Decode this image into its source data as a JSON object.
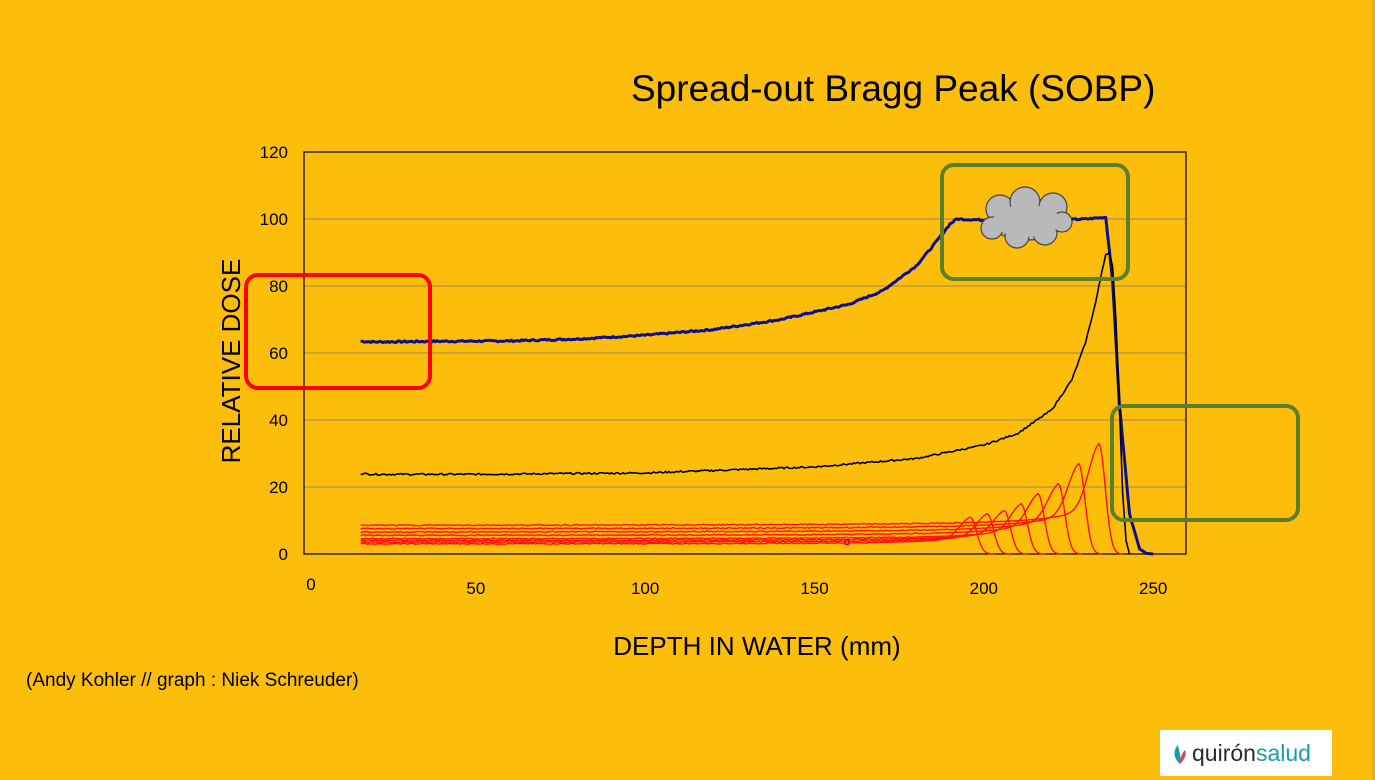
{
  "slide": {
    "title": "Spread-out Bragg Peak (SOBP)",
    "credit": "(Andy Kohler //  graph : Niek Schreuder)",
    "logo": {
      "part_a": "quirón",
      "part_b": "salud"
    },
    "colors": {
      "background": "#FDBD0B",
      "sobp_curve": "#0A0F8C",
      "single_peak_curve": "#000000",
      "weighted_peaks": "#FF1010",
      "annotation_red_box": "#FF0000",
      "annotation_green_box": "#5B7F2A",
      "cloud": "#B9B9B9"
    }
  },
  "chart_data": {
    "type": "line",
    "title": "Spread-out Bragg Peak (SOBP)",
    "xlabel": "DEPTH IN WATER (mm)",
    "ylabel": "RELATIVE DOSE",
    "xlim": [
      0,
      260
    ],
    "ylim": [
      0,
      120
    ],
    "xticks": [
      0,
      50,
      100,
      150,
      200,
      250
    ],
    "yticks": [
      0,
      20,
      40,
      60,
      80,
      100,
      120
    ],
    "grid": "horizontal",
    "series": [
      {
        "key": "sobp",
        "color": "#0A0F8C",
        "width": 3,
        "x": [
          16,
          20,
          40,
          60,
          80,
          100,
          120,
          140,
          160,
          170,
          180,
          185,
          190,
          192,
          200,
          210,
          220,
          230,
          236,
          238,
          240,
          243,
          246,
          248,
          250
        ],
        "y": [
          63.5,
          63.3,
          63.5,
          63.6,
          64.2,
          65.3,
          67.0,
          70.0,
          74.5,
          78.5,
          86.0,
          92.0,
          98.5,
          100,
          99.7,
          100,
          99.6,
          100,
          100.5,
          82,
          45,
          12,
          1.5,
          0.2,
          0
        ]
      },
      {
        "key": "pristine",
        "color": "#000000",
        "width": 1.6,
        "x": [
          16,
          20,
          50,
          100,
          150,
          180,
          200,
          210,
          220,
          226,
          230,
          233,
          235,
          236,
          237,
          238,
          239,
          240,
          241,
          242,
          243
        ],
        "y": [
          24,
          23.8,
          23.8,
          24.2,
          26,
          28.5,
          32.5,
          36,
          43,
          52,
          63,
          75,
          85,
          89.5,
          90,
          86,
          70,
          45,
          18,
          4,
          0
        ]
      }
    ],
    "peaks": {
      "color": "#FF1010",
      "entrance_start": 16,
      "items": [
        {
          "range": 196,
          "entrance": 3.0,
          "peak": 11
        },
        {
          "range": 201,
          "entrance": 3.5,
          "peak": 12
        },
        {
          "range": 206,
          "entrance": 4.0,
          "peak": 13
        },
        {
          "range": 211,
          "entrance": 4.5,
          "peak": 15
        },
        {
          "range": 216,
          "entrance": 5.5,
          "peak": 18
        },
        {
          "range": 222,
          "entrance": 6.5,
          "peak": 21
        },
        {
          "range": 228,
          "entrance": 7.5,
          "peak": 27
        },
        {
          "range": 234,
          "entrance": 8.5,
          "peak": 33
        }
      ]
    }
  }
}
